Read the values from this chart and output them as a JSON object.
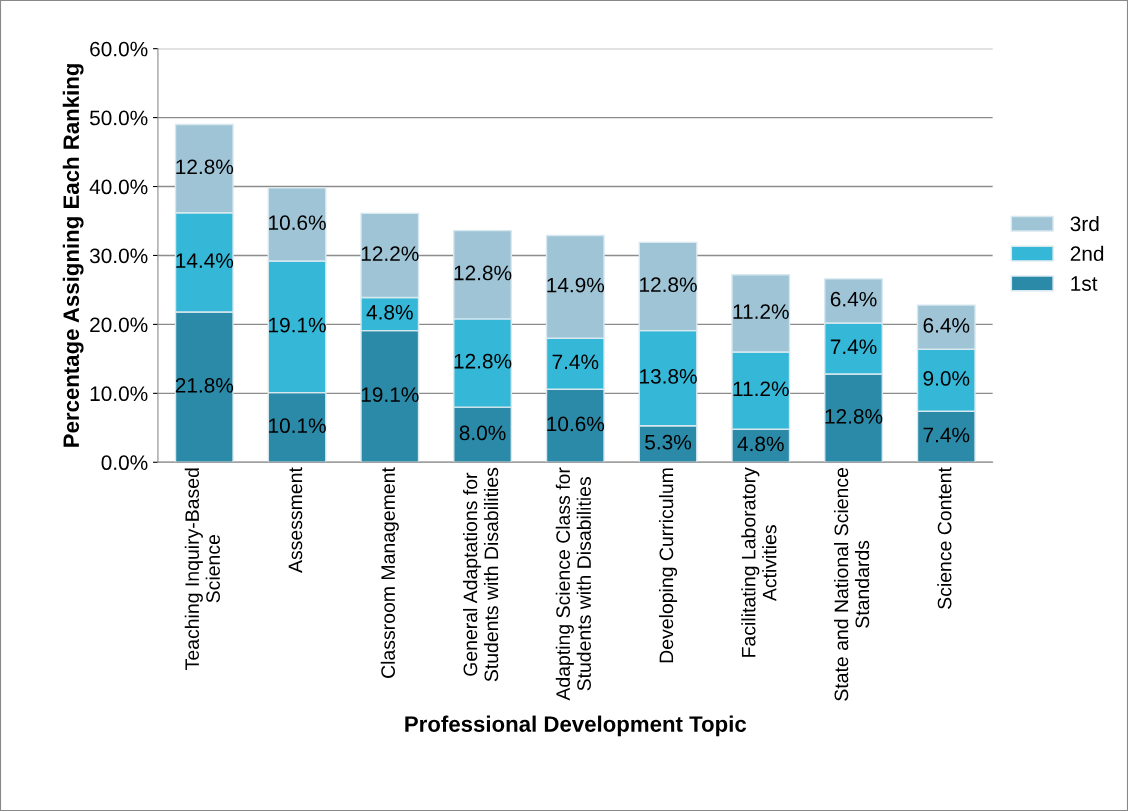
{
  "chart_data": {
    "type": "bar",
    "stacked": true,
    "xlabel": "Professional Development Topic",
    "ylabel": "Percentage Assigning Each Ranking",
    "categories": [
      "Teaching Inquiry-Based\nScience",
      "Assessment",
      "Classroom Management",
      "General Adaptations for\nStudents with Disabilities",
      "Adapting Science Class for\nStudents with Disabilities",
      "Developing Curriculum",
      "Facilitating Laboratory\nActivities",
      "State and National Science\nStandards",
      "Science Content"
    ],
    "series": [
      {
        "name": "1st",
        "color": "#2a8aa8",
        "values": [
          21.8,
          10.1,
          19.1,
          8.0,
          10.6,
          5.3,
          4.8,
          12.8,
          7.4
        ],
        "value_labels": [
          "21.8%",
          "10.1%",
          "19.1%",
          "8.0%",
          "10.6%",
          "5.3%",
          "4.8%",
          "12.8%",
          "7.4%"
        ]
      },
      {
        "name": "2nd",
        "color": "#35b8d8",
        "values": [
          14.4,
          19.1,
          4.8,
          12.8,
          7.4,
          13.8,
          11.2,
          7.4,
          9.0
        ],
        "value_labels": [
          "14.4%",
          "19.1%",
          "4.8%",
          "12.8%",
          "7.4%",
          "13.8%",
          "11.2%",
          "7.4%",
          "9.0%"
        ]
      },
      {
        "name": "3rd",
        "color": "#9ec4d6",
        "values": [
          12.8,
          10.6,
          12.2,
          12.8,
          14.9,
          12.8,
          11.2,
          6.4,
          6.4
        ],
        "value_labels": [
          "12.8%",
          "10.6%",
          "12.2%",
          "12.8%",
          "14.9%",
          "12.8%",
          "11.2%",
          "6.4%",
          "6.4%"
        ]
      }
    ],
    "ylim": [
      0,
      60
    ],
    "yticks": [
      {
        "value": 0,
        "label": "0.0%"
      },
      {
        "value": 10,
        "label": "10.0%"
      },
      {
        "value": 20,
        "label": "20.0%"
      },
      {
        "value": 30,
        "label": "30.0%"
      },
      {
        "value": 40,
        "label": "40.0%"
      },
      {
        "value": 50,
        "label": "50.0%"
      },
      {
        "value": 60,
        "label": "60.0%"
      }
    ],
    "grid": "y",
    "legend": "right"
  }
}
